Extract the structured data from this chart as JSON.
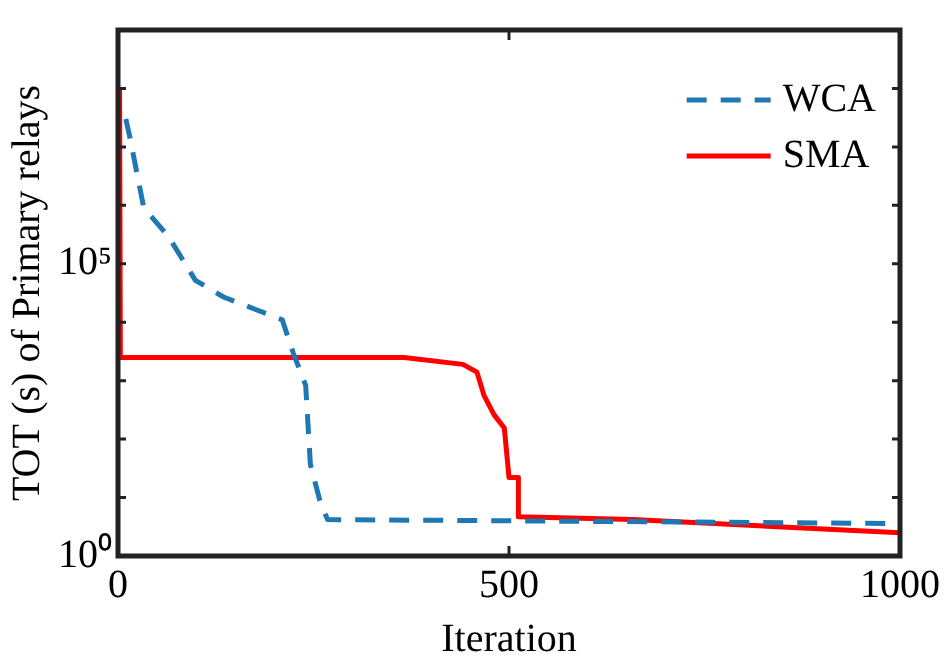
{
  "chart_data": {
    "type": "line",
    "xlabel": "Iteration",
    "ylabel": "TOT (s) of Primary relays",
    "log": "y",
    "grid": false,
    "legend": "top right",
    "marker": "none",
    "xlim": [
      0,
      1000
    ],
    "xticks": [
      0,
      500,
      1000
    ],
    "ylim": [
      1,
      1000000000
    ],
    "yticks": [
      {
        "value": 1,
        "label": "10⁰"
      },
      {
        "value": 10,
        "label": null
      },
      {
        "value": 100,
        "label": null
      },
      {
        "value": 1000,
        "label": null
      },
      {
        "value": 10000,
        "label": null
      },
      {
        "value": 100000,
        "label": "10⁵"
      },
      {
        "value": 1000000,
        "label": null
      },
      {
        "value": 10000000,
        "label": null
      },
      {
        "value": 100000000,
        "label": null
      }
    ],
    "series": [
      {
        "name": "WCA",
        "color": "#1f77b4",
        "line_style": "dashed",
        "x": [
          10,
          15,
          33,
          64,
          99,
          135,
          210,
          224,
          240,
          246,
          259,
          268,
          1000
        ],
        "values": [
          30000000,
          15000000,
          900000,
          300000,
          52000,
          27000,
          11000,
          3000,
          830,
          37,
          8,
          4.2,
          3.6
        ]
      },
      {
        "name": "SMA",
        "color": "#ff0000",
        "line_style": "solid",
        "x": [
          2,
          3,
          366,
          441,
          459,
          468,
          481,
          494,
          500,
          512,
          512,
          658,
          1000
        ],
        "values": [
          95000000,
          2500,
          2500,
          1900,
          1400,
          560,
          260,
          155,
          22,
          22,
          4.7,
          4.2,
          2.5
        ]
      }
    ]
  }
}
